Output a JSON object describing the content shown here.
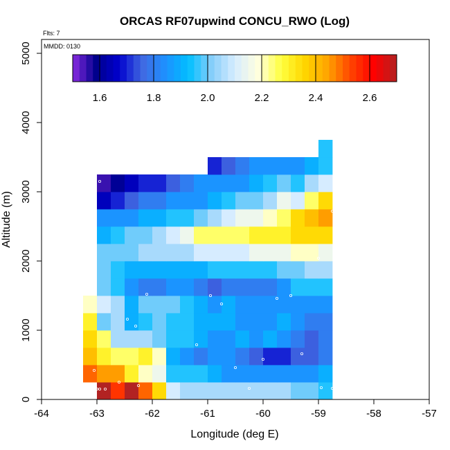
{
  "chart_data": {
    "type": "heatmap",
    "title": "ORCAS RF07upwind CONCU_RWO (Log)",
    "annotations": {
      "flights": "Flts: 7",
      "date": "MMDD: 0130"
    },
    "xlabel": "Longitude (deg E)",
    "ylabel": "Altitude (m)",
    "xlim": [
      -64,
      -57
    ],
    "ylim": [
      0,
      5200
    ],
    "xticks": [
      -64,
      -63,
      -62,
      -61,
      -60,
      -59,
      -58,
      -57
    ],
    "xtick_labels": [
      "-64",
      "-63",
      "-62",
      "-61",
      "-60",
      "-59",
      "-58",
      "-57"
    ],
    "yticks": [
      0,
      1000,
      2000,
      3000,
      4000,
      5000
    ],
    "ytick_labels": [
      "0",
      "1000",
      "2000",
      "3000",
      "4000",
      "5000"
    ],
    "colorbar": {
      "min": 1.5,
      "max": 2.7,
      "ticks": [
        1.6,
        1.8,
        2.0,
        2.2,
        2.4,
        2.6
      ],
      "tick_labels": [
        "1.6",
        "1.8",
        "2.0",
        "2.2",
        "2.4",
        "2.6"
      ],
      "colors": [
        "#8a2be2",
        "#00008b",
        "#0000cd",
        "#4169e1",
        "#1e90ff",
        "#00bfff",
        "#87cefa",
        "#d6ecff",
        "#ffffe0",
        "#ffff40",
        "#ffd700",
        "#ffa500",
        "#ff4500",
        "#ff0000",
        "#b22222"
      ]
    },
    "grid": {
      "lon_start": -63.25,
      "lon_step": 0.25,
      "alt_start": 0,
      "alt_step": 250,
      "cells": [
        [
          0,
          [
            null,
            2.7,
            2.55,
            2.7,
            2.5,
            2.35,
            2.1,
            2.05,
            2.05,
            2.05,
            2.05,
            2.05,
            2.05,
            2.05,
            2.05,
            2.0,
            2.0,
            1.95
          ]
        ],
        [
          250,
          [
            2.5,
            2.45,
            2.45,
            2.3,
            2.2,
            2.15,
            1.95,
            1.95,
            1.95,
            1.9,
            1.85,
            1.85,
            1.85,
            1.85,
            1.85,
            1.85,
            1.85,
            1.9
          ]
        ],
        [
          500,
          [
            2.4,
            2.3,
            2.25,
            2.25,
            2.3,
            2.2,
            1.9,
            1.85,
            1.8,
            1.85,
            1.85,
            1.8,
            1.75,
            1.7,
            1.7,
            1.75,
            1.75,
            1.8
          ]
        ],
        [
          750,
          [
            2.35,
            2.25,
            2.05,
            2.05,
            2.05,
            2.0,
            1.95,
            1.95,
            1.9,
            1.85,
            1.85,
            1.9,
            1.85,
            1.9,
            1.85,
            1.8,
            1.75,
            1.8
          ]
        ],
        [
          1000,
          [
            2.3,
            2.0,
            2.05,
            1.9,
            1.95,
            2.0,
            1.95,
            1.95,
            1.9,
            1.9,
            1.9,
            1.85,
            1.85,
            1.85,
            1.9,
            1.85,
            1.8,
            1.8
          ]
        ],
        [
          1250,
          [
            2.2,
            2.1,
            2.05,
            1.9,
            2.0,
            2.0,
            2.0,
            1.95,
            1.9,
            1.85,
            1.9,
            1.85,
            1.85,
            1.85,
            1.85,
            1.85,
            1.85,
            1.85
          ]
        ],
        [
          1500,
          [
            null,
            2.0,
            1.95,
            1.85,
            1.8,
            1.8,
            1.85,
            1.85,
            1.8,
            1.75,
            1.8,
            1.8,
            1.8,
            1.8,
            1.85,
            1.95,
            1.95,
            1.95
          ]
        ],
        [
          1750,
          [
            null,
            2.0,
            1.95,
            1.9,
            1.9,
            1.9,
            1.9,
            1.9,
            1.9,
            1.95,
            1.95,
            1.95,
            1.95,
            1.95,
            2.0,
            2.0,
            2.05,
            2.05
          ]
        ],
        [
          2000,
          [
            null,
            2.0,
            2.0,
            2.0,
            2.05,
            2.05,
            2.05,
            2.05,
            2.1,
            2.1,
            2.1,
            2.1,
            2.15,
            2.15,
            2.15,
            2.2,
            2.2,
            2.15
          ]
        ],
        [
          2250,
          [
            null,
            1.9,
            1.95,
            2.0,
            2.0,
            2.05,
            2.1,
            2.15,
            2.25,
            2.25,
            2.25,
            2.25,
            2.3,
            2.3,
            2.3,
            2.35,
            2.35,
            2.35
          ]
        ],
        [
          2500,
          [
            null,
            1.85,
            1.85,
            1.85,
            1.9,
            1.9,
            1.95,
            1.95,
            2.0,
            2.05,
            2.1,
            2.15,
            2.15,
            2.2,
            2.25,
            2.35,
            2.4,
            2.45
          ]
        ],
        [
          2750,
          [
            null,
            1.65,
            1.7,
            1.75,
            1.8,
            1.8,
            1.85,
            1.85,
            1.85,
            1.9,
            1.95,
            2.0,
            2.0,
            2.05,
            2.15,
            2.1,
            2.25,
            2.35
          ]
        ],
        [
          3000,
          [
            null,
            1.55,
            1.6,
            1.65,
            1.7,
            1.7,
            1.75,
            1.8,
            1.85,
            1.85,
            1.85,
            1.85,
            1.9,
            1.95,
            2.0,
            1.95,
            2.05,
            2.1
          ]
        ],
        [
          3250,
          [
            null,
            null,
            null,
            null,
            null,
            null,
            null,
            null,
            null,
            1.7,
            1.75,
            1.8,
            1.85,
            1.85,
            1.85,
            1.85,
            1.9,
            1.95
          ]
        ],
        [
          3500,
          [
            null,
            null,
            null,
            null,
            null,
            null,
            null,
            null,
            null,
            null,
            null,
            null,
            null,
            null,
            null,
            null,
            null,
            1.95
          ]
        ]
      ]
    },
    "sample_points": [
      [
        -63.0,
        150
      ],
      [
        -62.95,
        150
      ],
      [
        -62.85,
        150
      ],
      [
        -63.05,
        420
      ],
      [
        -62.6,
        250
      ],
      [
        -62.25,
        200
      ],
      [
        -62.1,
        1520
      ],
      [
        -62.45,
        1160
      ],
      [
        -62.3,
        1060
      ],
      [
        -61.2,
        790
      ],
      [
        -60.95,
        1500
      ],
      [
        -60.75,
        1380
      ],
      [
        -60.5,
        460
      ],
      [
        -60.25,
        160
      ],
      [
        -60.0,
        580
      ],
      [
        -59.75,
        1460
      ],
      [
        -59.5,
        1500
      ],
      [
        -59.3,
        660
      ],
      [
        -58.95,
        170
      ],
      [
        -58.75,
        160
      ],
      [
        -58.7,
        860
      ],
      [
        -59.0,
        2040
      ],
      [
        -58.75,
        2720
      ],
      [
        -58.7,
        3660
      ],
      [
        -62.95,
        3150
      ]
    ]
  }
}
